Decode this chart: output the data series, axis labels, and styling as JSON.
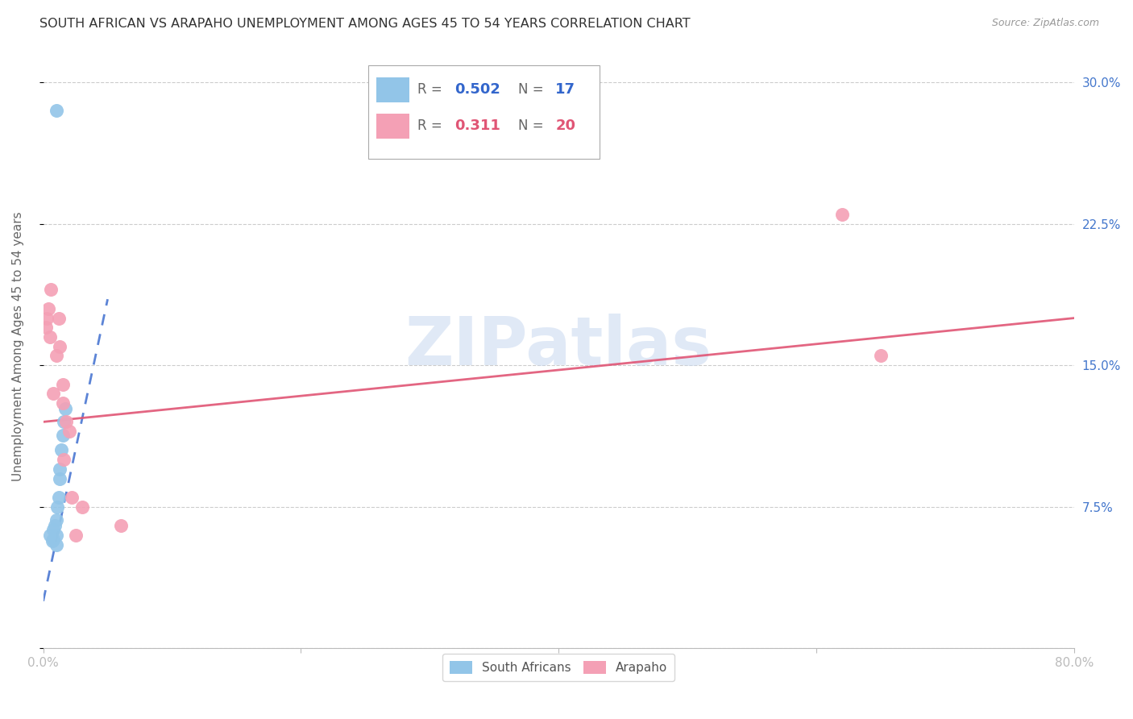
{
  "title": "SOUTH AFRICAN VS ARAPAHO UNEMPLOYMENT AMONG AGES 45 TO 54 YEARS CORRELATION CHART",
  "source": "Source: ZipAtlas.com",
  "ylabel": "Unemployment Among Ages 45 to 54 years",
  "xlim": [
    0.0,
    0.8
  ],
  "ylim": [
    0.0,
    0.32
  ],
  "blue_color": "#92c5e8",
  "pink_color": "#f4a0b5",
  "trend_blue_color": "#3366cc",
  "trend_pink_color": "#e05575",
  "axis_label_color": "#4477cc",
  "grid_color": "#cccccc",
  "background_color": "#ffffff",
  "watermark_text": "ZIPatlas",
  "watermark_color": "#c8d8f0",
  "south_african_x": [
    0.005,
    0.007,
    0.008,
    0.008,
    0.009,
    0.01,
    0.01,
    0.01,
    0.011,
    0.012,
    0.013,
    0.013,
    0.014,
    0.015,
    0.016,
    0.017,
    0.01
  ],
  "south_african_y": [
    0.06,
    0.057,
    0.058,
    0.063,
    0.065,
    0.055,
    0.06,
    0.068,
    0.075,
    0.08,
    0.09,
    0.095,
    0.105,
    0.113,
    0.12,
    0.127,
    0.285
  ],
  "arapaho_x": [
    0.002,
    0.003,
    0.004,
    0.005,
    0.006,
    0.008,
    0.01,
    0.012,
    0.013,
    0.015,
    0.015,
    0.016,
    0.018,
    0.02,
    0.022,
    0.025,
    0.03,
    0.06,
    0.62,
    0.65
  ],
  "arapaho_y": [
    0.17,
    0.175,
    0.18,
    0.165,
    0.19,
    0.135,
    0.155,
    0.175,
    0.16,
    0.13,
    0.14,
    0.1,
    0.12,
    0.115,
    0.08,
    0.06,
    0.075,
    0.065,
    0.23,
    0.155
  ],
  "sa_trend_x": [
    0.0,
    0.05
  ],
  "sa_trend_y_start": 0.025,
  "sa_trend_y_end": 0.185,
  "ar_trend_x": [
    0.0,
    0.8
  ],
  "ar_trend_y_start": 0.12,
  "ar_trend_y_end": 0.175
}
